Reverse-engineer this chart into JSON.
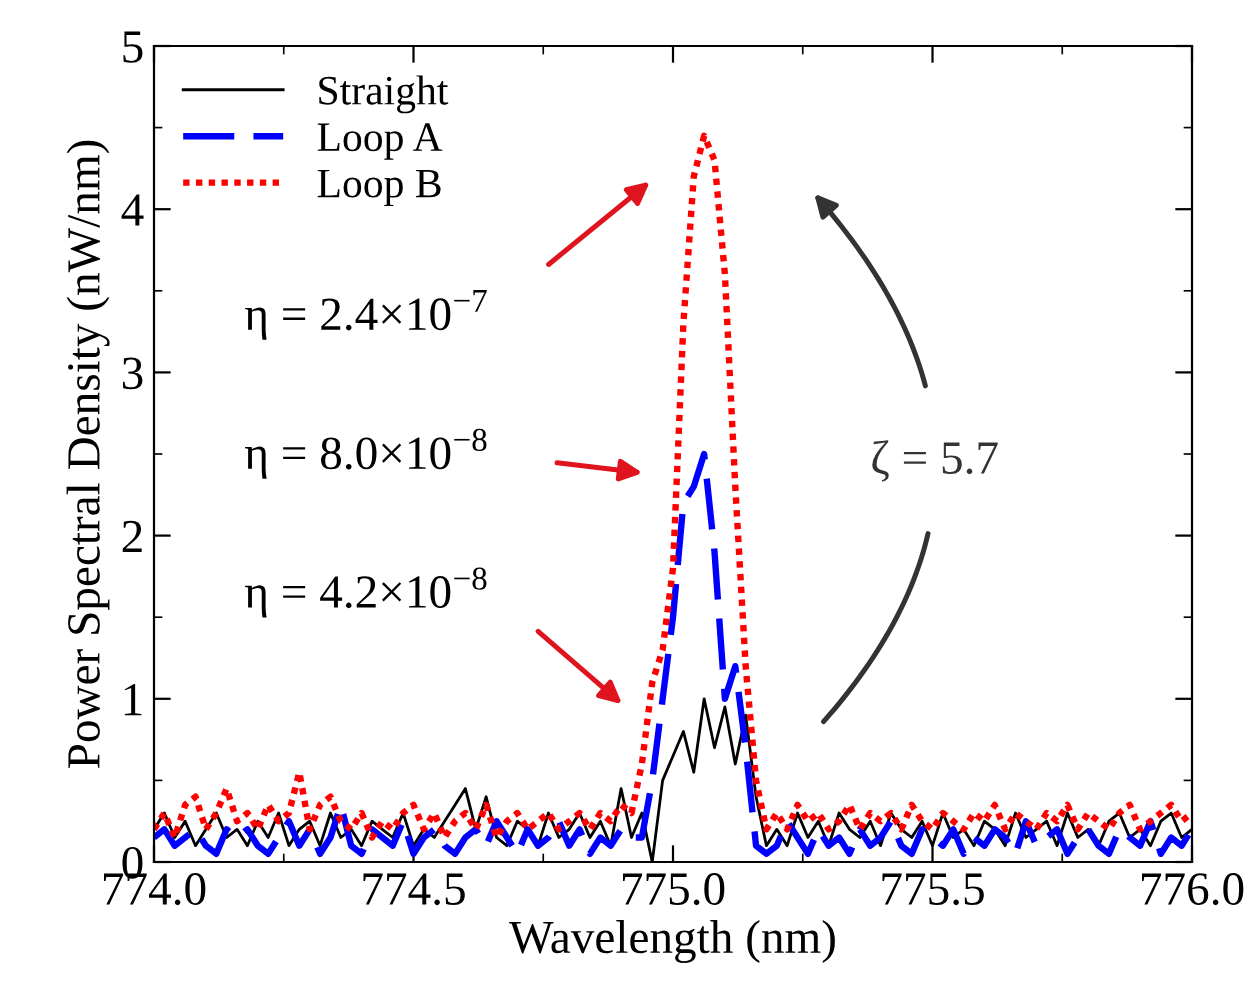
{
  "chart_data": {
    "type": "line",
    "xlabel": "Wavelength (nm)",
    "ylabel": "Power Spectral Density (nW/nm)",
    "x": [
      774.0,
      774.02,
      774.04,
      774.06,
      774.08,
      774.1,
      774.12,
      774.14,
      774.16,
      774.18,
      774.2,
      774.22,
      774.24,
      774.26,
      774.28,
      774.3,
      774.32,
      774.34,
      774.36,
      774.38,
      774.4,
      774.42,
      774.44,
      774.46,
      774.48,
      774.5,
      774.52,
      774.54,
      774.56,
      774.58,
      774.6,
      774.62,
      774.64,
      774.66,
      774.68,
      774.7,
      774.72,
      774.74,
      774.76,
      774.78,
      774.8,
      774.82,
      774.84,
      774.86,
      774.88,
      774.9,
      774.92,
      774.94,
      774.96,
      774.98,
      775.0,
      775.02,
      775.04,
      775.06,
      775.08,
      775.1,
      775.12,
      775.14,
      775.16,
      775.18,
      775.2,
      775.22,
      775.24,
      775.26,
      775.28,
      775.3,
      775.32,
      775.34,
      775.36,
      775.38,
      775.4,
      775.42,
      775.44,
      775.46,
      775.48,
      775.5,
      775.52,
      775.54,
      775.56,
      775.58,
      775.6,
      775.62,
      775.64,
      775.66,
      775.68,
      775.7,
      775.72,
      775.74,
      775.76,
      775.78,
      775.8,
      775.82,
      775.84,
      775.86,
      775.88,
      775.9,
      775.92,
      775.94,
      775.96,
      775.98,
      776.0
    ],
    "series": [
      {
        "name": "Straight",
        "color": "#000000",
        "line_style": "solid",
        "values": [
          0.2,
          0.3,
          0.15,
          0.25,
          0.1,
          0.2,
          0.3,
          0.15,
          0.2,
          0.1,
          0.25,
          0.15,
          0.3,
          0.1,
          0.2,
          0.25,
          0.1,
          0.3,
          0.15,
          0.2,
          0.1,
          0.25,
          0.2,
          0.15,
          0.3,
          0.1,
          0.2,
          0.15,
          0.25,
          0.35,
          0.45,
          0.2,
          0.4,
          0.15,
          0.1,
          0.25,
          0.2,
          0.1,
          0.3,
          0.15,
          0.2,
          0.3,
          0.15,
          0.25,
          0.1,
          0.45,
          0.15,
          0.3,
          0.0,
          0.5,
          0.65,
          0.8,
          0.55,
          1.0,
          0.7,
          0.95,
          0.6,
          0.9,
          0.4,
          0.1,
          0.2,
          0.1,
          0.3,
          0.15,
          0.25,
          0.1,
          0.3,
          0.2,
          0.15,
          0.25,
          0.1,
          0.3,
          0.2,
          0.15,
          0.25,
          0.1,
          0.3,
          0.15,
          0.2,
          0.1,
          0.25,
          0.2,
          0.1,
          0.3,
          0.15,
          0.2,
          0.25,
          0.1,
          0.3,
          0.15,
          0.2,
          0.1,
          0.25,
          0.3,
          0.15,
          0.2,
          0.1,
          0.25,
          0.3,
          0.15,
          0.2
        ]
      },
      {
        "name": "Loop A",
        "color": "#0000ff",
        "line_style": "dashed",
        "values": [
          0.15,
          0.2,
          0.1,
          0.15,
          0.2,
          0.1,
          0.05,
          0.2,
          0.15,
          0.2,
          0.1,
          0.05,
          0.15,
          0.25,
          0.1,
          0.2,
          0.05,
          0.15,
          0.35,
          0.1,
          0.05,
          0.2,
          0.15,
          0.1,
          0.25,
          0.05,
          0.15,
          0.2,
          0.1,
          0.05,
          0.15,
          0.2,
          0.1,
          0.25,
          0.15,
          0.05,
          0.2,
          0.1,
          0.15,
          0.25,
          0.1,
          0.2,
          0.05,
          0.15,
          0.1,
          0.2,
          0.15,
          0.15,
          0.5,
          1.0,
          1.5,
          2.2,
          2.3,
          2.5,
          1.9,
          1.0,
          1.2,
          0.7,
          0.1,
          0.05,
          0.1,
          0.25,
          0.15,
          0.05,
          0.2,
          0.1,
          0.15,
          0.05,
          0.2,
          0.1,
          0.15,
          0.25,
          0.1,
          0.05,
          0.2,
          0.15,
          0.1,
          0.2,
          0.05,
          0.15,
          0.1,
          0.2,
          0.15,
          0.05,
          0.25,
          0.1,
          0.15,
          0.2,
          0.05,
          0.15,
          0.2,
          0.1,
          0.05,
          0.2,
          0.15,
          0.1,
          0.25,
          0.05,
          0.15,
          0.1,
          0.2
        ]
      },
      {
        "name": "Loop B",
        "color": "#ff0000",
        "line_style": "dotted",
        "values": [
          0.2,
          0.3,
          0.15,
          0.35,
          0.4,
          0.2,
          0.3,
          0.45,
          0.25,
          0.3,
          0.2,
          0.35,
          0.25,
          0.3,
          0.55,
          0.2,
          0.35,
          0.4,
          0.25,
          0.2,
          0.3,
          0.15,
          0.25,
          0.2,
          0.3,
          0.35,
          0.2,
          0.3,
          0.15,
          0.25,
          0.3,
          0.2,
          0.35,
          0.15,
          0.25,
          0.3,
          0.2,
          0.25,
          0.3,
          0.2,
          0.25,
          0.3,
          0.2,
          0.3,
          0.25,
          0.35,
          0.3,
          0.6,
          1.1,
          1.3,
          1.8,
          3.3,
          4.2,
          4.45,
          4.3,
          3.6,
          2.3,
          1.2,
          0.5,
          0.2,
          0.3,
          0.2,
          0.35,
          0.25,
          0.3,
          0.2,
          0.25,
          0.35,
          0.2,
          0.3,
          0.25,
          0.3,
          0.2,
          0.35,
          0.25,
          0.2,
          0.3,
          0.25,
          0.2,
          0.3,
          0.25,
          0.35,
          0.2,
          0.3,
          0.25,
          0.2,
          0.3,
          0.25,
          0.35,
          0.2,
          0.3,
          0.25,
          0.2,
          0.3,
          0.35,
          0.2,
          0.25,
          0.3,
          0.35,
          0.25,
          0.3
        ]
      }
    ],
    "xlim": [
      774.0,
      776.0
    ],
    "ylim": [
      0,
      5
    ],
    "xticks": [
      {
        "value": 774.0,
        "label": "774.0"
      },
      {
        "value": 774.5,
        "label": "774.5"
      },
      {
        "value": 775.0,
        "label": "775.0"
      },
      {
        "value": 775.5,
        "label": "775.5"
      },
      {
        "value": 776.0,
        "label": "776.0"
      }
    ],
    "yticks": [
      0,
      1,
      2,
      3,
      4,
      5
    ],
    "annotations": [
      "η = 2.4×10$^{−7}$",
      "η = 8.0×10$^{−8}$",
      "η = 4.2×10$^{−8}$",
      "ζ = 5.7"
    ],
    "legend": "top left",
    "grid": false
  }
}
